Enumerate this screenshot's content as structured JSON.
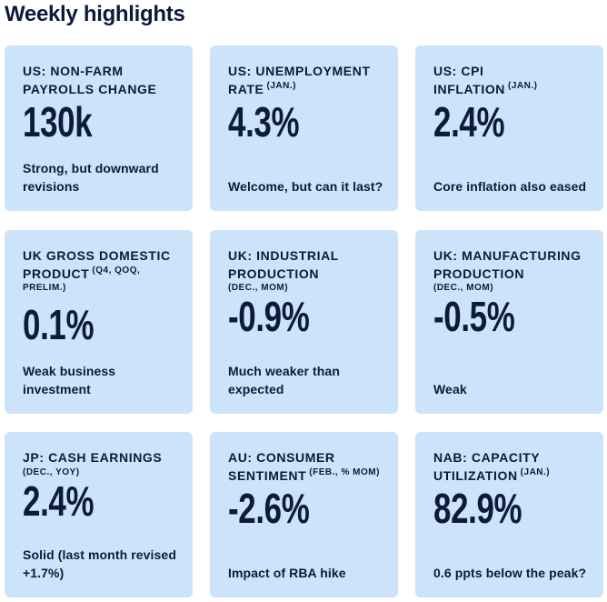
{
  "header": {
    "title": "Weekly highlights"
  },
  "cards": [
    {
      "label": "US: NON-FARM PAYROLLS CHANGE",
      "qualifier": null,
      "value": "130k",
      "comment": "Strong, but downward revisions"
    },
    {
      "label": "US: UNEMPLOYMENT RATE",
      "qualifier": "(JAN.)",
      "value": "4.3%",
      "comment": "Welcome, but can it last?"
    },
    {
      "label": "US: CPI INFLATION",
      "qualifier": "(JAN.)",
      "value": "2.4%",
      "comment": "Core inflation also eased"
    },
    {
      "label": "UK GROSS DOMESTIC PRODUCT",
      "qualifier": "(Q4, QOQ, PRELIM.)",
      "value": "0.1%",
      "comment": "Weak business investment"
    },
    {
      "label": "UK: INDUSTRIAL PRODUCTION",
      "qualifier": "(DEC., MOM)",
      "value": "-0.9%",
      "comment": "Much weaker than expected"
    },
    {
      "label": "UK: MANUFACTURING PRODUCTION",
      "qualifier": "(DEC., MOM)",
      "value": "-0.5%",
      "comment": "Weak"
    },
    {
      "label": "JP: CASH EARNINGS",
      "qualifier": "(DEC., YOY)",
      "value": "2.4%",
      "comment": "Solid (last month revised +1.7%)"
    },
    {
      "label": "AU: CONSUMER SENTIMENT",
      "qualifier": "(FEB., % MOM)",
      "value": "-2.6%",
      "comment": "Impact of RBA hike"
    },
    {
      "label": "NAB: CAPACITY UTILIZATION",
      "qualifier": "(JAN.)",
      "value": "82.9%",
      "comment": "0.6 ppts below the peak?"
    }
  ]
}
